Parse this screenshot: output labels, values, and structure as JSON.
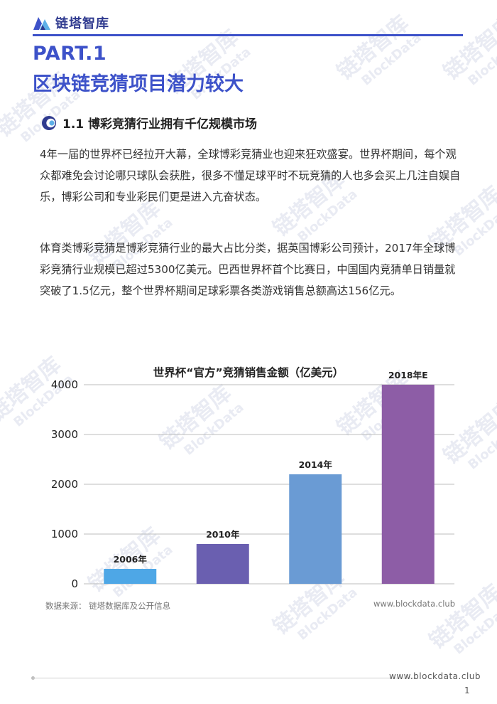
{
  "header": {
    "logo_text": "链塔智库"
  },
  "part": {
    "label": "PART.1",
    "title": "区块链竞猜项目潜力较大"
  },
  "section": {
    "title": "1.1 博彩竞猜行业拥有千亿规模市场"
  },
  "paragraphs": [
    "4年一届的世界杯已经拉开大幕，全球博彩竞猜业也迎来狂欢盛宴。世界杯期间，每个观众都难免会讨论哪只球队会获胜，很多不懂足球平时不玩竞猜的人也多会买上几注自娱自乐，博彩公司和专业彩民们更是进入亢奋状态。",
    "体育类博彩竞猜是博彩竞猜行业的最大占比分类，据英国博彩公司预计，2017年全球博彩竞猜行业规模已超过5300亿美元。巴西世界杯首个比赛日，中国国内竞猜单日销量就突破了1.5亿元，整个世界杯期间足球彩票各类游戏销售总额高达156亿元。"
  ],
  "chart_data": {
    "type": "bar",
    "title": "世界杯“官方”竞猜销售金额（亿美元）",
    "categories": [
      "2006年",
      "2010年",
      "2014年",
      "2018年E"
    ],
    "values": [
      300,
      800,
      2200,
      4000
    ],
    "colors": [
      "#4ea7e6",
      "#6a5fb0",
      "#6a9bd4",
      "#8d5da6"
    ],
    "ylim": [
      0,
      4000
    ],
    "yticks": [
      0,
      1000,
      2000,
      3000,
      4000
    ],
    "grid": true,
    "xlabel": "",
    "ylabel": ""
  },
  "source": {
    "label": "数据来源：  链塔数据库及公开信息",
    "url": "www.blockdata.club"
  },
  "footer": {
    "url": "www.blockdata.club",
    "page": "1"
  },
  "watermark": {
    "text": "链塔智库",
    "sub": "BlockData"
  }
}
